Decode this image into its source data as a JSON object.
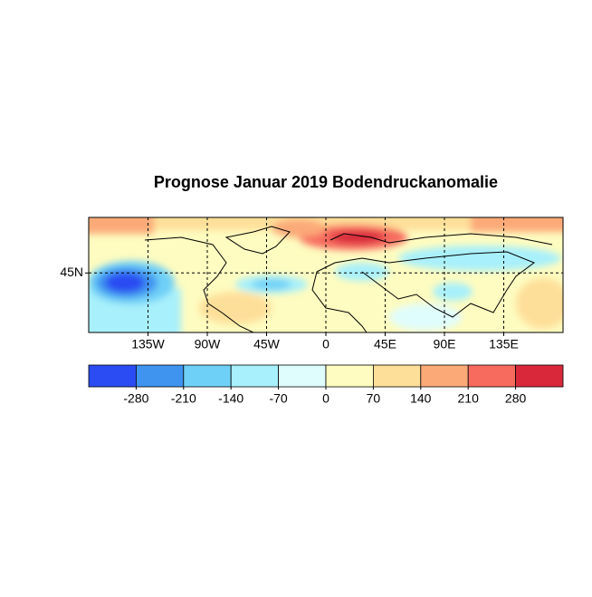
{
  "chart_data": {
    "type": "map",
    "title": "Prognose Januar 2019 Bodendruckanomalie",
    "xlim": [
      -180,
      180
    ],
    "ylim": [
      0,
      87
    ],
    "xticks": [
      {
        "value": -135,
        "label": "135W"
      },
      {
        "value": -90,
        "label": "90W"
      },
      {
        "value": -45,
        "label": "45W"
      },
      0,
      {
        "value": 45,
        "label": "45E"
      },
      {
        "value": 90,
        "label": "90E"
      },
      {
        "value": 135,
        "label": "135E"
      }
    ],
    "yticks": [
      {
        "value": 45,
        "label": "45N"
      }
    ],
    "grid": true,
    "colorbar": {
      "clim": [
        -350,
        350
      ],
      "ticks": [
        -280,
        -210,
        -140,
        -70,
        0,
        70,
        140,
        210,
        280
      ],
      "colors": [
        "#2b4cf2",
        "#3f94f0",
        "#6fd0f7",
        "#a8f0fb",
        "#e0fdfd",
        "#fefcc0",
        "#fedf9a",
        "#fca978",
        "#f76b5e",
        "#d8283a"
      ]
    }
  }
}
